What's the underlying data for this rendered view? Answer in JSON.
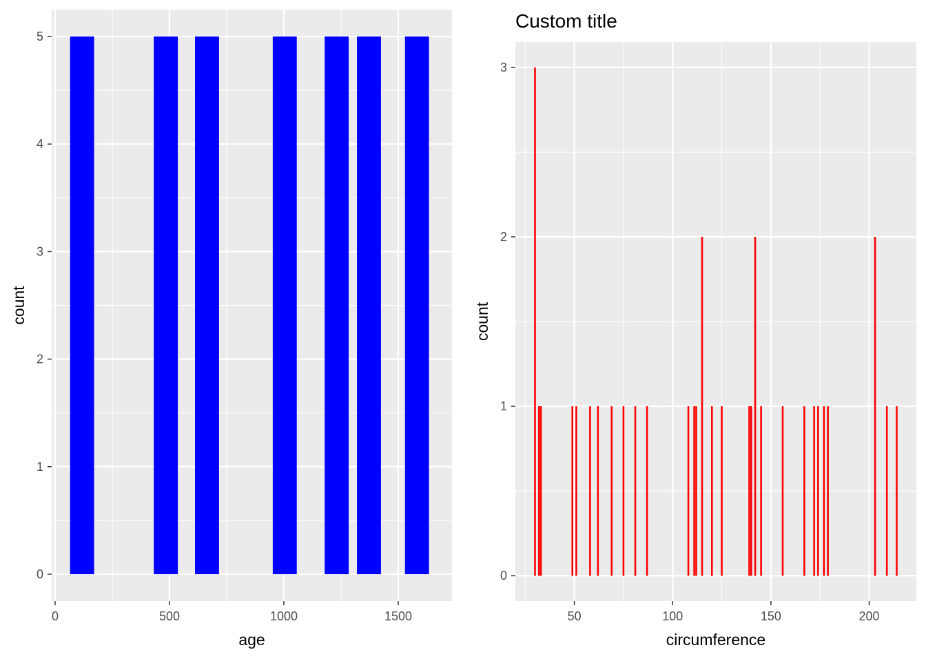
{
  "chart_data": [
    {
      "type": "bar",
      "title": "",
      "xlabel": "age",
      "ylabel": "count",
      "fill_color": "#0000ff",
      "xlim": [
        -15,
        1735
      ],
      "ylim": [
        -0.25,
        5.25
      ],
      "xticks": [
        0,
        500,
        1000,
        1500
      ],
      "yticks": [
        0,
        1,
        2,
        3,
        4,
        5
      ],
      "bar_width": 105,
      "bars": [
        {
          "x": 118,
          "count": 5
        },
        {
          "x": 484,
          "count": 5
        },
        {
          "x": 664,
          "count": 5
        },
        {
          "x": 1004,
          "count": 5
        },
        {
          "x": 1231,
          "count": 5
        },
        {
          "x": 1372,
          "count": 5
        },
        {
          "x": 1582,
          "count": 5
        }
      ],
      "grid": true,
      "background": "#ebebeb"
    },
    {
      "type": "bar",
      "title": "Custom title",
      "xlabel": "circumference",
      "ylabel": "count",
      "fill_color": "#ff0000",
      "xlim": [
        20,
        224
      ],
      "ylim": [
        -0.15,
        3.15
      ],
      "xticks": [
        50,
        100,
        150,
        200
      ],
      "yticks": [
        0,
        1,
        2,
        3
      ],
      "bar_width": 0.9,
      "bars": [
        {
          "x": 30,
          "count": 3
        },
        {
          "x": 32,
          "count": 1
        },
        {
          "x": 33,
          "count": 1
        },
        {
          "x": 49,
          "count": 1
        },
        {
          "x": 51,
          "count": 1
        },
        {
          "x": 58,
          "count": 1
        },
        {
          "x": 62,
          "count": 1
        },
        {
          "x": 69,
          "count": 1
        },
        {
          "x": 75,
          "count": 1
        },
        {
          "x": 81,
          "count": 1
        },
        {
          "x": 87,
          "count": 1
        },
        {
          "x": 108,
          "count": 1
        },
        {
          "x": 111,
          "count": 1
        },
        {
          "x": 112,
          "count": 1
        },
        {
          "x": 115,
          "count": 2
        },
        {
          "x": 120,
          "count": 1
        },
        {
          "x": 125,
          "count": 1
        },
        {
          "x": 139,
          "count": 1
        },
        {
          "x": 140,
          "count": 1
        },
        {
          "x": 142,
          "count": 2
        },
        {
          "x": 145,
          "count": 1
        },
        {
          "x": 156,
          "count": 1
        },
        {
          "x": 167,
          "count": 1
        },
        {
          "x": 172,
          "count": 1
        },
        {
          "x": 174,
          "count": 1
        },
        {
          "x": 177,
          "count": 1
        },
        {
          "x": 179,
          "count": 1
        },
        {
          "x": 203,
          "count": 2
        },
        {
          "x": 209,
          "count": 1
        },
        {
          "x": 214,
          "count": 1
        }
      ],
      "grid": true,
      "background": "#ebebeb"
    }
  ]
}
